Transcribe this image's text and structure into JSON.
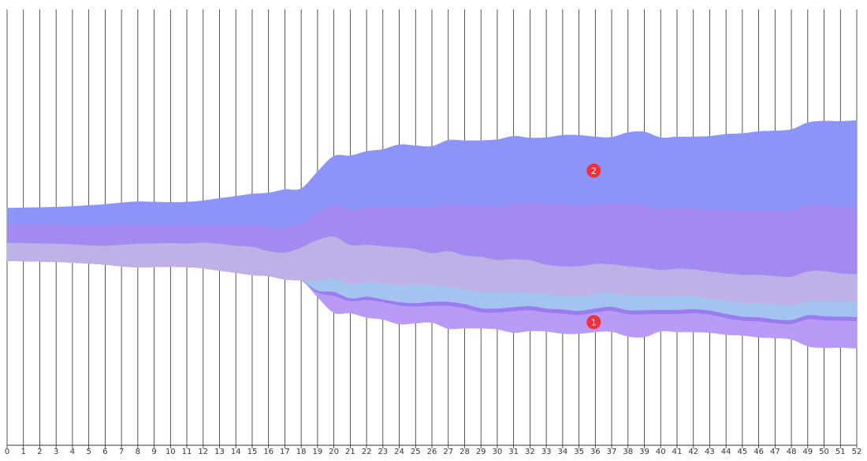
{
  "chart_data": {
    "type": "area",
    "subtype": "streamgraph",
    "x": [
      0,
      1,
      2,
      3,
      4,
      5,
      6,
      7,
      8,
      9,
      10,
      11,
      12,
      13,
      14,
      15,
      16,
      17,
      18,
      19,
      20,
      21,
      22,
      23,
      24,
      25,
      26,
      27,
      28,
      29,
      30,
      31,
      32,
      33,
      34,
      35,
      36,
      37,
      38,
      39,
      40,
      41,
      42,
      43,
      44,
      45,
      46,
      47,
      48,
      49,
      50,
      51,
      52
    ],
    "x_tick_labels": [
      "0",
      "1",
      "2",
      "3",
      "4",
      "5",
      "6",
      "7",
      "8",
      "9",
      "10",
      "11",
      "12",
      "13",
      "14",
      "15",
      "16",
      "17",
      "18",
      "19",
      "20",
      "21",
      "22",
      "23",
      "24",
      "25",
      "26",
      "27",
      "28",
      "29",
      "30",
      "31",
      "32",
      "33",
      "34",
      "35",
      "36",
      "37",
      "38",
      "39",
      "40",
      "41",
      "42",
      "43",
      "44",
      "45",
      "46",
      "47",
      "48",
      "49",
      "50",
      "51",
      "52"
    ],
    "grid": "vertical lines at every x tick",
    "y_axis": "hidden",
    "series": [
      {
        "color": "#b99bf5",
        "values": [
          0,
          0,
          0,
          0,
          0,
          0,
          0,
          0,
          0,
          0,
          0,
          0,
          0,
          0,
          0,
          0,
          0,
          0,
          0,
          7,
          25,
          18,
          26,
          26,
          28,
          25,
          25,
          34,
          30,
          24,
          25,
          32,
          31,
          28,
          30,
          28,
          29,
          31,
          33,
          34,
          26,
          27,
          28,
          27,
          25,
          22,
          24,
          22,
          23,
          40,
          41,
          40,
          41
        ]
      },
      {
        "color": "#9b7cf0",
        "values": [
          0,
          0,
          0,
          0,
          0,
          0,
          0,
          0,
          0,
          0,
          0,
          0,
          0,
          0,
          0,
          0,
          0,
          0,
          0,
          3,
          6,
          4,
          5,
          4,
          5,
          5,
          6,
          6,
          6,
          6,
          6,
          6,
          6,
          6,
          6,
          6,
          6,
          6,
          6,
          6,
          6,
          6,
          6,
          6,
          6,
          6,
          6,
          6,
          6,
          6,
          6,
          6,
          6
        ]
      },
      {
        "color": "#a3c4f0",
        "values": [
          0,
          0,
          0,
          0,
          0,
          0,
          0,
          0,
          0,
          0,
          0,
          0,
          0,
          0,
          0,
          0,
          0,
          0,
          0,
          15,
          20,
          21,
          22,
          24,
          25,
          28,
          24,
          23,
          22,
          24,
          24,
          22,
          20,
          22,
          20,
          21,
          22,
          21,
          22,
          21,
          20,
          21,
          19,
          18,
          20,
          20,
          21,
          22,
          22,
          20,
          22,
          22,
          23
        ]
      },
      {
        "color": "#bfb0e8",
        "values": [
          27,
          27,
          27,
          27,
          27,
          27,
          28,
          32,
          35,
          35,
          35,
          35,
          38,
          40,
          40,
          42,
          37,
          40,
          49,
          60,
          62,
          58,
          55,
          55,
          56,
          52,
          48,
          52,
          50,
          52,
          48,
          49,
          48,
          43,
          44,
          45,
          44,
          42,
          43,
          42,
          39,
          40,
          40,
          40,
          40,
          42,
          42,
          42,
          42,
          45,
          45,
          42,
          40
        ]
      },
      {
        "color": "#a38af0",
        "values": [
          27,
          28,
          28,
          28,
          28,
          29,
          29,
          29,
          28,
          27,
          26,
          26,
          26,
          27,
          29,
          32,
          36,
          38,
          35,
          40,
          47,
          52,
          56,
          57,
          60,
          62,
          68,
          69,
          73,
          77,
          79,
          82,
          86,
          90,
          92,
          90,
          88,
          90,
          92,
          93,
          90,
          91,
          90,
          92,
          94,
          95,
          96,
          97,
          98,
          98,
          98,
          99,
          100
        ]
      },
      {
        "color": "#8c94fa",
        "values": [
          24,
          24,
          25,
          26,
          28,
          30,
          32,
          33,
          34,
          34,
          34,
          35,
          36,
          40,
          44,
          46,
          50,
          55,
          52,
          61,
          72,
          80,
          82,
          86,
          92,
          91,
          90,
          95,
          97,
          95,
          99,
          100,
          95,
          98,
          102,
          104,
          100,
          98,
          106,
          108,
          106,
          104,
          106,
          108,
          112,
          114,
          116,
          118,
          120,
          122,
          124,
          126,
          128
        ]
      }
    ],
    "annotations": [
      {
        "label": "1",
        "x": 36,
        "series_index": 0,
        "color": "#f0323c"
      },
      {
        "label": "2",
        "x": 36,
        "series_index": 5,
        "color": "#f0323c"
      }
    ]
  }
}
